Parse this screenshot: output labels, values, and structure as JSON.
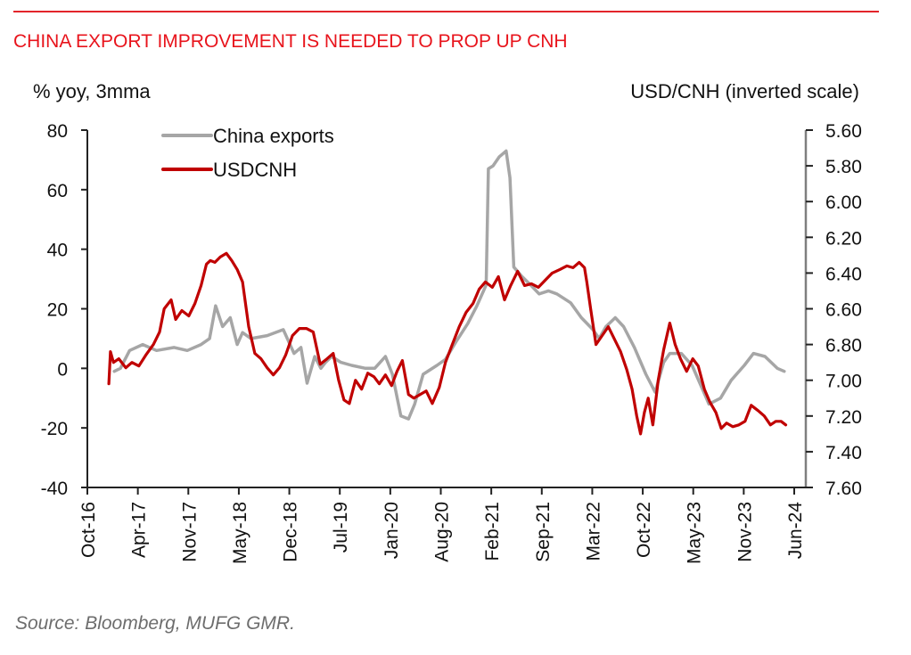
{
  "header": {
    "title": "CHINA EXPORT IMPROVEMENT IS NEEDED TO PROP UP CNH"
  },
  "footer": {
    "source": "Source: Bloomberg, MUFG GMR."
  },
  "chart_data": {
    "type": "line",
    "title": "CHINA EXPORT IMPROVEMENT IS NEEDED TO PROP UP CNH",
    "ylabel": "% yoy, 3mma",
    "y2label": "USD/CNH (inverted scale)",
    "ylim": [
      -40,
      80
    ],
    "y2lim": [
      7.6,
      5.6
    ],
    "y2_inverted": true,
    "yticks": [
      "80",
      "60",
      "40",
      "20",
      "0",
      "-20",
      "-40"
    ],
    "y2ticks": [
      "5.60",
      "5.80",
      "6.00",
      "6.20",
      "6.40",
      "6.60",
      "6.80",
      "7.00",
      "7.20",
      "7.40",
      "7.60"
    ],
    "xticks": [
      "Oct-16",
      "Apr-17",
      "Nov-17",
      "May-18",
      "Dec-18",
      "Jul-19",
      "Jan-20",
      "Aug-20",
      "Feb-21",
      "Sep-21",
      "Mar-22",
      "Oct-22",
      "May-23",
      "Nov-23",
      "Jun-24"
    ],
    "x_unit": "months since Oct-16",
    "xlim": [
      0,
      92
    ],
    "legend": {
      "placement": "top-left",
      "entries": [
        "China exports",
        "USDCNH"
      ]
    },
    "grid": false,
    "colors": {
      "China exports": "#a6a6a6",
      "USDCNH": "#c00000",
      "title": "#e8141c"
    },
    "series": [
      {
        "name": "China exports",
        "axis": "left",
        "x": [
          3.5,
          4.3,
          5.5,
          7.2,
          9.0,
          11.3,
          13.0,
          14.8,
          15.9,
          16.7,
          17.6,
          18.6,
          19.5,
          20.2,
          21.3,
          23.4,
          25.5,
          26.9,
          27.8,
          28.6,
          29.6,
          30.4,
          31.0,
          31.8,
          33.0,
          34.4,
          36.2,
          37.4,
          38.8,
          39.7,
          40.8,
          41.8,
          42.6,
          43.7,
          45.5,
          46.6,
          48.0,
          49.5,
          50.7,
          51.9,
          52.2,
          52.8,
          53.6,
          54.5,
          55.0,
          55.5,
          56.5,
          57.7,
          58.8,
          60.0,
          61.1,
          62.9,
          64.3,
          65.8,
          66.6,
          67.5,
          68.7,
          69.8,
          71.2,
          72.7,
          73.9,
          75.0,
          75.8,
          77.3,
          78.7,
          80.4,
          80.9,
          82.4,
          83.8,
          85.5,
          86.7,
          88.2,
          89.0,
          89.8,
          90.7
        ],
        "values": [
          -1,
          0,
          6,
          8,
          6,
          7,
          6,
          8,
          10,
          21,
          14,
          17,
          8,
          12,
          10,
          11,
          13,
          5,
          7,
          -5,
          4,
          0,
          2,
          4,
          2,
          1,
          0,
          0,
          4,
          -2,
          -16,
          -17,
          -12,
          -2,
          1,
          3,
          9,
          15,
          21,
          28,
          67,
          68,
          71,
          73,
          64,
          34,
          31,
          28,
          25,
          26,
          25,
          22,
          17,
          13,
          10,
          14,
          17,
          14,
          7,
          -2,
          -8,
          2,
          5,
          5,
          1,
          -9,
          -12,
          -10,
          -4,
          1,
          5,
          4,
          2,
          0,
          -1
        ]
      },
      {
        "name": "USDCNH",
        "axis": "right",
        "x": [
          2.8,
          3.0,
          3.4,
          4.1,
          5.0,
          5.8,
          6.7,
          7.6,
          8.6,
          9.4,
          10.0,
          10.9,
          11.5,
          12.3,
          13.2,
          14.0,
          14.8,
          15.5,
          16.0,
          16.6,
          17.3,
          18.1,
          18.8,
          19.5,
          20.2,
          21.0,
          21.8,
          22.6,
          23.4,
          24.2,
          25.0,
          25.8,
          26.7,
          27.6,
          28.5,
          29.4,
          30.3,
          31.2,
          32.0,
          32.7,
          33.4,
          34.1,
          34.9,
          35.7,
          36.5,
          37.3,
          38.0,
          38.8,
          39.6,
          40.3,
          41.0,
          41.8,
          42.5,
          43.3,
          44.1,
          44.9,
          45.8,
          46.6,
          47.5,
          48.4,
          49.3,
          50.2,
          51.0,
          51.8,
          52.7,
          53.5,
          54.3,
          55.1,
          56.0,
          56.9,
          57.8,
          58.7,
          59.6,
          60.5,
          61.5,
          62.4,
          63.2,
          64.0,
          64.7,
          65.0,
          65.5,
          66.2,
          67.0,
          67.8,
          68.6,
          69.4,
          70.2,
          70.9,
          71.5,
          72.0,
          72.5,
          73.0,
          73.6,
          74.3,
          75.0,
          75.8,
          76.5,
          77.2,
          78.0,
          78.8,
          79.5,
          80.3,
          81.0,
          81.8,
          82.5,
          83.2,
          84.0,
          84.8,
          85.6,
          86.4,
          87.3,
          88.1,
          88.9,
          89.6,
          90.3,
          90.9
        ],
        "values": [
          7.02,
          6.84,
          6.9,
          6.88,
          6.93,
          6.9,
          6.92,
          6.86,
          6.8,
          6.73,
          6.6,
          6.55,
          6.66,
          6.61,
          6.64,
          6.57,
          6.47,
          6.35,
          6.33,
          6.34,
          6.31,
          6.29,
          6.33,
          6.38,
          6.45,
          6.7,
          6.85,
          6.88,
          6.93,
          6.97,
          6.93,
          6.86,
          6.75,
          6.71,
          6.71,
          6.73,
          6.91,
          6.88,
          6.85,
          7.0,
          7.11,
          7.13,
          7.0,
          7.05,
          6.96,
          6.98,
          7.02,
          6.97,
          7.03,
          6.95,
          6.89,
          7.08,
          7.1,
          7.08,
          7.06,
          7.13,
          7.04,
          6.9,
          6.8,
          6.7,
          6.62,
          6.57,
          6.49,
          6.45,
          6.48,
          6.42,
          6.55,
          6.47,
          6.39,
          6.47,
          6.46,
          6.48,
          6.44,
          6.4,
          6.38,
          6.36,
          6.37,
          6.34,
          6.37,
          6.45,
          6.6,
          6.8,
          6.75,
          6.7,
          6.77,
          6.84,
          6.94,
          7.05,
          7.2,
          7.3,
          7.18,
          7.1,
          7.25,
          7.0,
          6.83,
          6.68,
          6.8,
          6.88,
          6.95,
          6.88,
          6.92,
          7.05,
          7.12,
          7.18,
          7.27,
          7.24,
          7.26,
          7.25,
          7.23,
          7.14,
          7.17,
          7.2,
          7.25,
          7.23,
          7.23,
          7.25
        ]
      }
    ]
  }
}
